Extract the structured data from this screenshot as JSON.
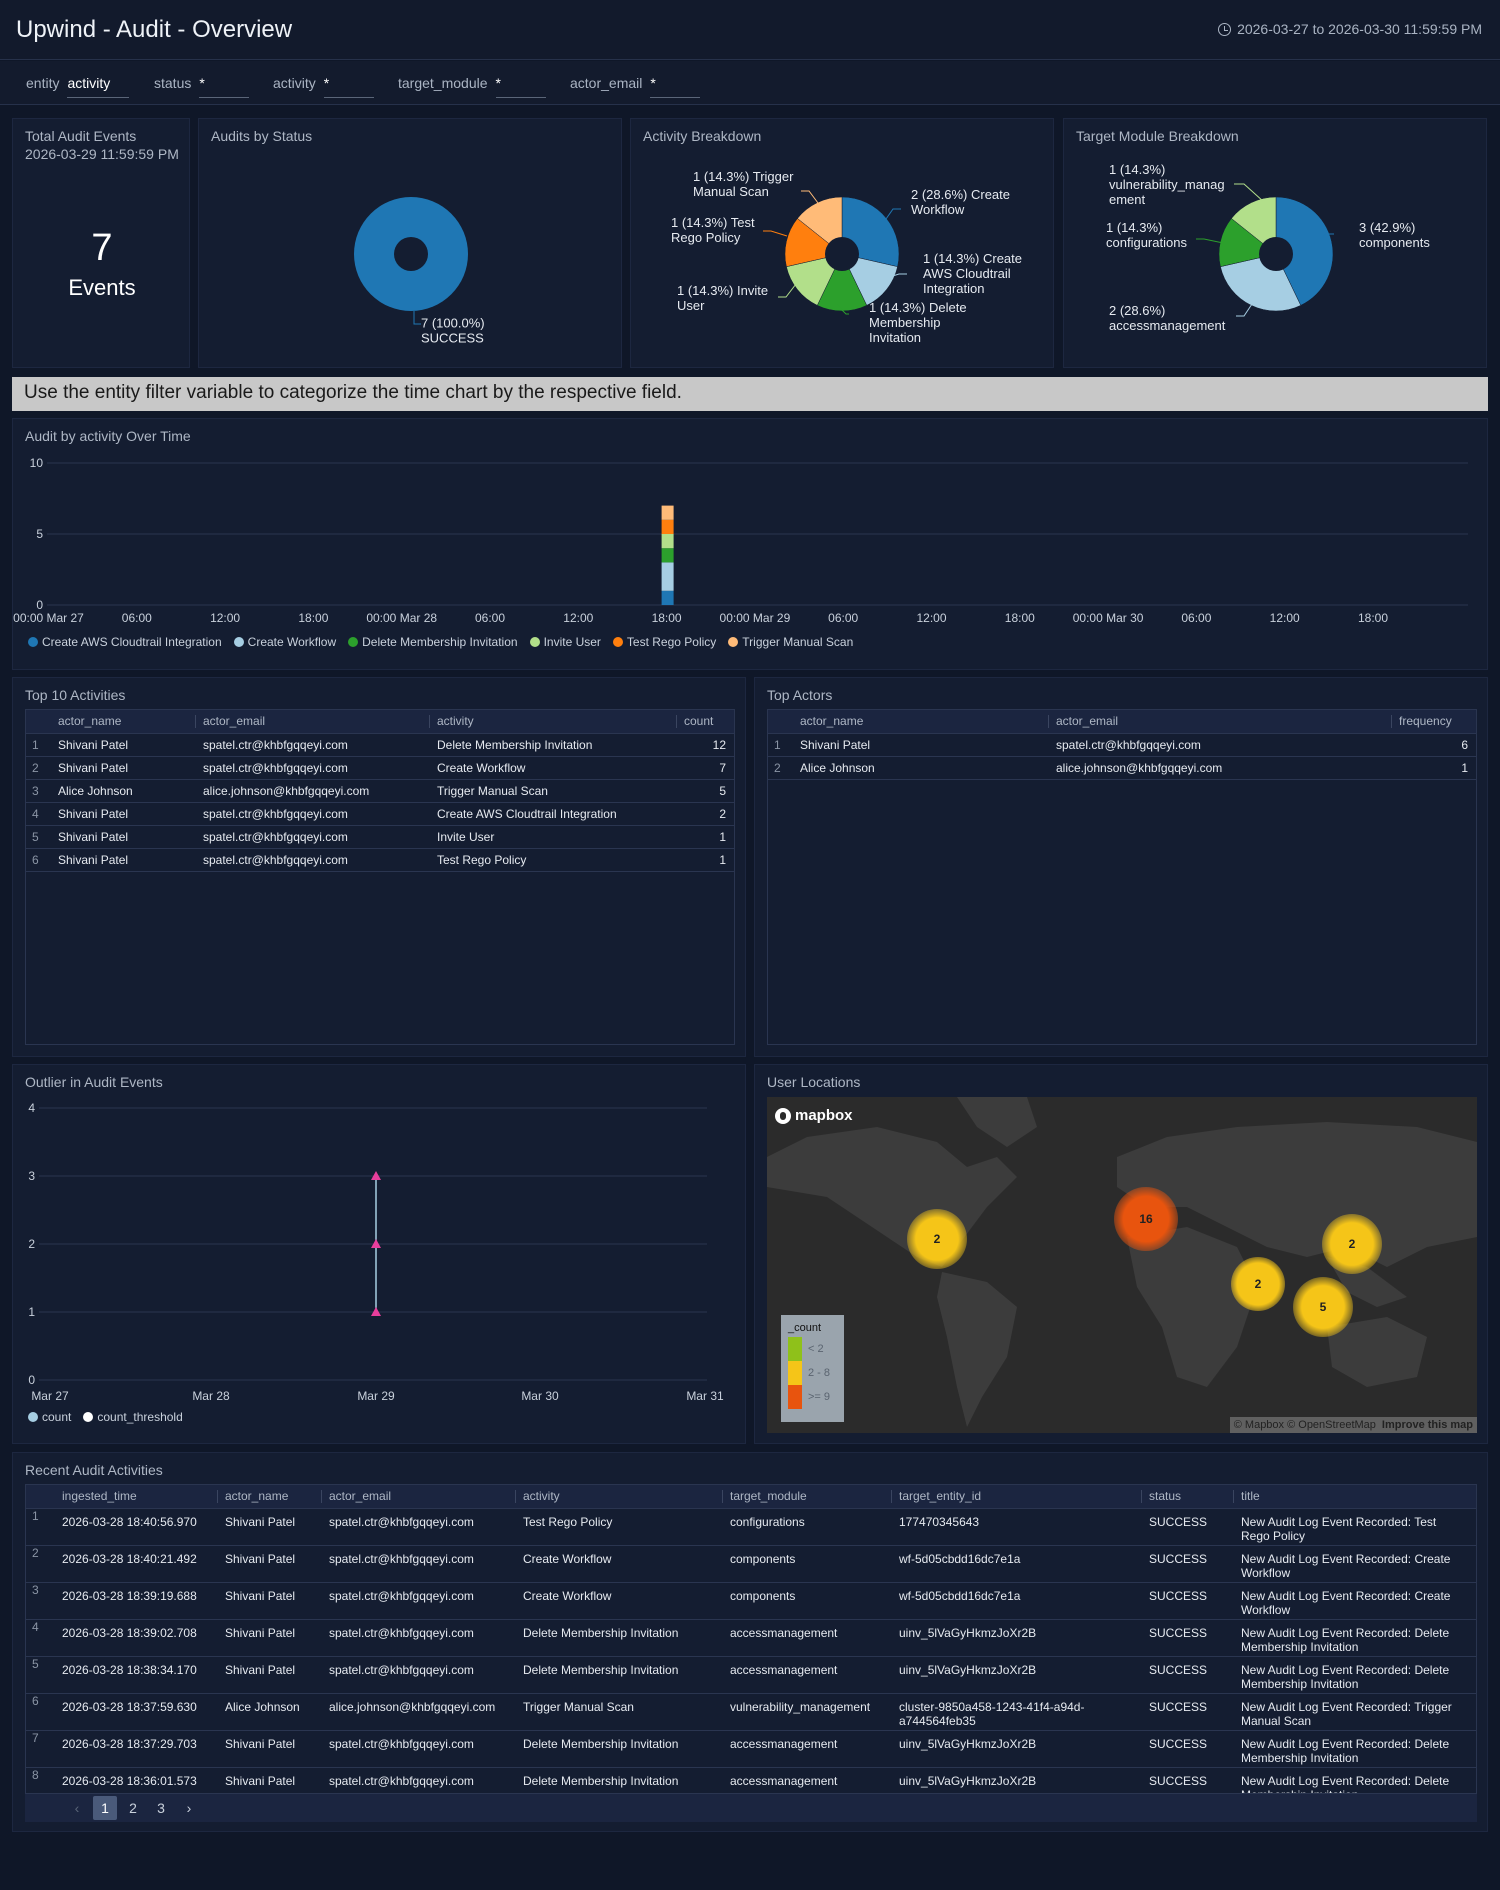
{
  "header": {
    "title": "Upwind - Audit - Overview",
    "time_range": "2026-03-27 to 2026-03-30 11:59:59 PM"
  },
  "filters": [
    {
      "label": "entity",
      "value": "activity"
    },
    {
      "label": "status",
      "value": "*"
    },
    {
      "label": "activity",
      "value": "*"
    },
    {
      "label": "target_module",
      "value": "*"
    },
    {
      "label": "actor_email",
      "value": "*"
    }
  ],
  "total_audit": {
    "title": "Total Audit Events",
    "subtitle": "2026-03-29 11:59:59 PM",
    "value": "7",
    "unit": "Events"
  },
  "audits_by_status": {
    "title": "Audits by Status",
    "label_value": "7 (100.0%)",
    "label_name": "SUCCESS"
  },
  "activity_breakdown": {
    "title": "Activity Breakdown",
    "labels": [
      "1 (14.3%) Trigger",
      "Manual Scan",
      "2 (28.6%) Create",
      "Workflow",
      "1 (14.3%) Test",
      "Rego Policy",
      "1 (14.3%) Create",
      "AWS Cloudtrail",
      "Integration",
      "1 (14.3%) Invite",
      "User",
      "1 (14.3%) Delete",
      "Membership",
      "Invitation"
    ]
  },
  "target_module_breakdown": {
    "title": "Target Module Breakdown",
    "labels": [
      "1 (14.3%)",
      "vulnerability_manag",
      "ement",
      "3 (42.9%)",
      "components",
      "1 (14.3%)",
      "configurations",
      "2 (28.6%)",
      "accessmanagement"
    ]
  },
  "banner": "Use the entity filter variable to categorize the time chart by the respective field.",
  "time_chart": {
    "title": "Audit by activity Over Time",
    "y_ticks": [
      "10",
      "5",
      "0"
    ],
    "x_ticks": [
      "00:00 Mar 27",
      "06:00",
      "12:00",
      "18:00",
      "00:00 Mar 28",
      "06:00",
      "12:00",
      "18:00",
      "00:00 Mar 29",
      "06:00",
      "12:00",
      "18:00",
      "00:00 Mar 30",
      "06:00",
      "12:00",
      "18:00"
    ],
    "legend": [
      {
        "name": "Create AWS Cloudtrail Integration",
        "color": "#1f77b4"
      },
      {
        "name": "Create Workflow",
        "color": "#a6cee3"
      },
      {
        "name": "Delete Membership Invitation",
        "color": "#2ca02c"
      },
      {
        "name": "Invite User",
        "color": "#b2df8a"
      },
      {
        "name": "Test Rego Policy",
        "color": "#ff7f0e"
      },
      {
        "name": "Trigger Manual Scan",
        "color": "#ffbb78"
      }
    ]
  },
  "top_activities": {
    "title": "Top 10 Activities",
    "columns": [
      "actor_name",
      "actor_email",
      "activity",
      "count"
    ],
    "rows": [
      [
        "1",
        "Shivani Patel",
        "spatel.ctr@khbfgqqeyi.com",
        "Delete Membership Invitation",
        "12"
      ],
      [
        "2",
        "Shivani Patel",
        "spatel.ctr@khbfgqqeyi.com",
        "Create Workflow",
        "7"
      ],
      [
        "3",
        "Alice Johnson",
        "alice.johnson@khbfgqqeyi.com",
        "Trigger Manual Scan",
        "5"
      ],
      [
        "4",
        "Shivani Patel",
        "spatel.ctr@khbfgqqeyi.com",
        "Create AWS Cloudtrail Integration",
        "2"
      ],
      [
        "5",
        "Shivani Patel",
        "spatel.ctr@khbfgqqeyi.com",
        "Invite User",
        "1"
      ],
      [
        "6",
        "Shivani Patel",
        "spatel.ctr@khbfgqqeyi.com",
        "Test Rego Policy",
        "1"
      ]
    ]
  },
  "top_actors": {
    "title": "Top Actors",
    "columns": [
      "actor_name",
      "actor_email",
      "frequency"
    ],
    "rows": [
      [
        "1",
        "Shivani Patel",
        "spatel.ctr@khbfgqqeyi.com",
        "6"
      ],
      [
        "2",
        "Alice Johnson",
        "alice.johnson@khbfgqqeyi.com",
        "1"
      ]
    ]
  },
  "outlier": {
    "title": "Outlier in Audit Events",
    "y_ticks": [
      "4",
      "3",
      "2",
      "1",
      "0"
    ],
    "x_ticks": [
      "Mar 27",
      "Mar 28",
      "Mar 29",
      "Mar 30",
      "Mar 31"
    ],
    "legend": [
      {
        "name": "count",
        "color": "#a6cee3"
      },
      {
        "name": "count_threshold",
        "color": "#ffffff"
      }
    ]
  },
  "user_locations": {
    "title": "User Locations",
    "logo": "mapbox",
    "clusters": [
      "2",
      "16",
      "2",
      "2",
      "5"
    ],
    "legend_title": "_count",
    "legend_items": [
      "< 2",
      "2 - 8",
      ">= 9"
    ],
    "attribution": "© Mapbox © OpenStreetMap",
    "improve": "Improve this map"
  },
  "recent": {
    "title": "Recent Audit Activities",
    "columns": [
      "ingested_time",
      "actor_name",
      "actor_email",
      "activity",
      "target_module",
      "target_entity_id",
      "status",
      "title"
    ],
    "rows": [
      [
        "1",
        "2026-03-28 18:40:56.970",
        "Shivani Patel",
        "spatel.ctr@khbfgqqeyi.com",
        "Test Rego Policy",
        "configurations",
        "177470345643",
        "SUCCESS",
        "New Audit Log Event Recorded: Test Rego Policy"
      ],
      [
        "2",
        "2026-03-28 18:40:21.492",
        "Shivani Patel",
        "spatel.ctr@khbfgqqeyi.com",
        "Create Workflow",
        "components",
        "wf-5d05cbdd16dc7e1a",
        "SUCCESS",
        "New Audit Log Event Recorded: Create Workflow"
      ],
      [
        "3",
        "2026-03-28 18:39:19.688",
        "Shivani Patel",
        "spatel.ctr@khbfgqqeyi.com",
        "Create Workflow",
        "components",
        "wf-5d05cbdd16dc7e1a",
        "SUCCESS",
        "New Audit Log Event Recorded: Create Workflow"
      ],
      [
        "4",
        "2026-03-28 18:39:02.708",
        "Shivani Patel",
        "spatel.ctr@khbfgqqeyi.com",
        "Delete Membership Invitation",
        "accessmanagement",
        "uinv_5lVaGyHkmzJoXr2B",
        "SUCCESS",
        "New Audit Log Event Recorded: Delete Membership Invitation"
      ],
      [
        "5",
        "2026-03-28 18:38:34.170",
        "Shivani Patel",
        "spatel.ctr@khbfgqqeyi.com",
        "Delete Membership Invitation",
        "accessmanagement",
        "uinv_5lVaGyHkmzJoXr2B",
        "SUCCESS",
        "New Audit Log Event Recorded: Delete Membership Invitation"
      ],
      [
        "6",
        "2026-03-28 18:37:59.630",
        "Alice Johnson",
        "alice.johnson@khbfgqqeyi.com",
        "Trigger Manual Scan",
        "vulnerability_management",
        "cluster-9850a458-1243-41f4-a94d-a744564feb35",
        "SUCCESS",
        "New Audit Log Event Recorded: Trigger Manual Scan"
      ],
      [
        "7",
        "2026-03-28 18:37:29.703",
        "Shivani Patel",
        "spatel.ctr@khbfgqqeyi.com",
        "Delete Membership Invitation",
        "accessmanagement",
        "uinv_5lVaGyHkmzJoXr2B",
        "SUCCESS",
        "New Audit Log Event Recorded: Delete Membership Invitation"
      ],
      [
        "8",
        "2026-03-28 18:36:01.573",
        "Shivani Patel",
        "spatel.ctr@khbfgqqeyi.com",
        "Delete Membership Invitation",
        "accessmanagement",
        "uinv_5lVaGyHkmzJoXr2B",
        "SUCCESS",
        "New Audit Log Event Recorded: Delete Membership Invitation"
      ]
    ],
    "pages": [
      "1",
      "2",
      "3"
    ]
  },
  "chart_data": [
    {
      "type": "pie",
      "title": "Audits by Status",
      "labels": [
        "SUCCESS"
      ],
      "values": [
        7
      ],
      "colors": [
        "#1f77b4"
      ]
    },
    {
      "type": "pie",
      "title": "Activity Breakdown",
      "labels": [
        "Create Workflow",
        "Create AWS Cloudtrail Integration",
        "Delete Membership Invitation",
        "Invite User",
        "Test Rego Policy",
        "Trigger Manual Scan"
      ],
      "values": [
        2,
        1,
        1,
        1,
        1,
        1
      ],
      "colors": [
        "#1f77b4",
        "#a6cee3",
        "#2ca02c",
        "#b2df8a",
        "#ff7f0e",
        "#ffbb78"
      ]
    },
    {
      "type": "pie",
      "title": "Target Module Breakdown",
      "labels": [
        "components",
        "accessmanagement",
        "configurations",
        "vulnerability_management"
      ],
      "values": [
        3,
        2,
        1,
        1
      ],
      "colors": [
        "#1f77b4",
        "#a6cee3",
        "#2ca02c",
        "#b2df8a"
      ]
    },
    {
      "type": "bar",
      "title": "Audit by activity Over Time",
      "x": [
        "2026-03-28 18:00"
      ],
      "ylim": [
        0,
        10
      ],
      "series": [
        {
          "name": "Create AWS Cloudtrail Integration",
          "values": [
            1
          ]
        },
        {
          "name": "Create Workflow",
          "values": [
            2
          ]
        },
        {
          "name": "Delete Membership Invitation",
          "values": [
            1
          ]
        },
        {
          "name": "Invite User",
          "values": [
            1
          ]
        },
        {
          "name": "Test Rego Policy",
          "values": [
            1
          ]
        },
        {
          "name": "Trigger Manual Scan",
          "values": [
            1
          ]
        }
      ]
    },
    {
      "type": "line",
      "title": "Outlier in Audit Events",
      "x": [
        "Mar 29",
        "Mar 29",
        "Mar 29"
      ],
      "ylim": [
        0,
        4
      ],
      "series": [
        {
          "name": "count",
          "values": [
            1,
            2,
            3
          ]
        }
      ]
    }
  ]
}
